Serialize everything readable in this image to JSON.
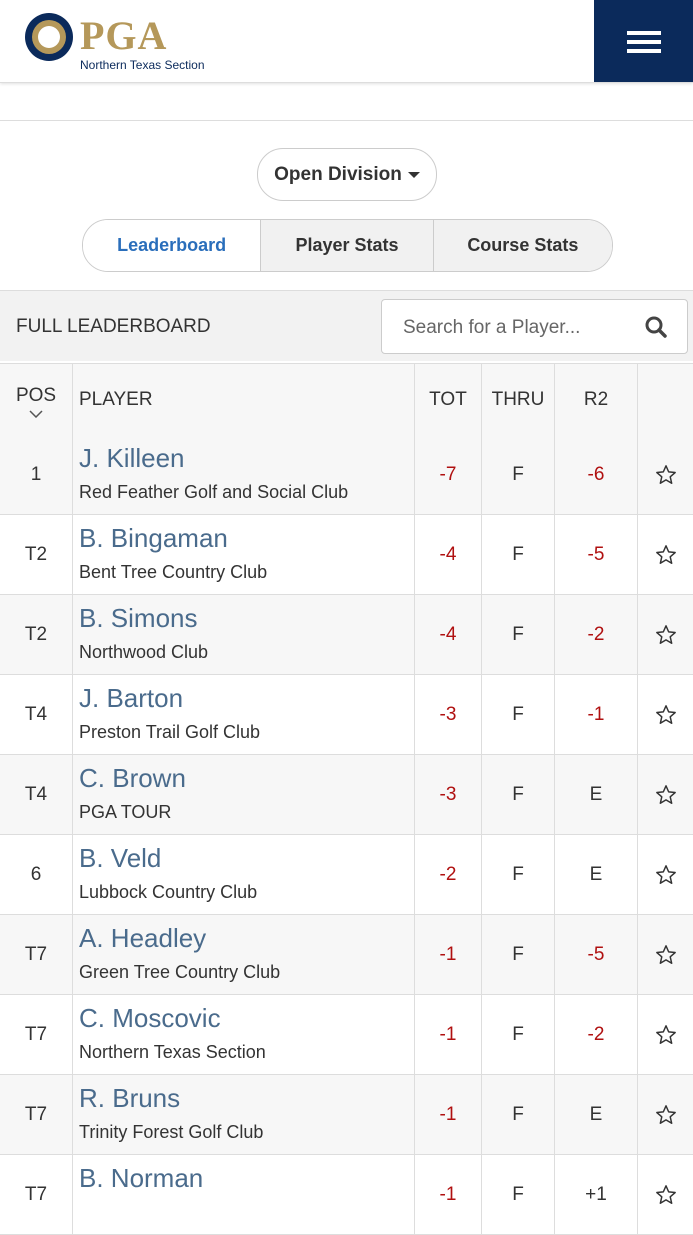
{
  "header": {
    "logo_text": "PGA",
    "section": "Northern Texas Section"
  },
  "division": "Open Division",
  "tabs": [
    "Leaderboard",
    "Player Stats",
    "Course Stats"
  ],
  "leaderboard": {
    "title": "FULL LEADERBOARD",
    "search_placeholder": "Search for a Player...",
    "columns": [
      "POS",
      "PLAYER",
      "TOT",
      "THRU",
      "R2"
    ],
    "rows": [
      {
        "pos": "1",
        "name": "J. Killeen",
        "club": "Red Feather Golf and Social Club",
        "tot": "-7",
        "thru": "F",
        "r2": "-6"
      },
      {
        "pos": "T2",
        "name": "B. Bingaman",
        "club": "Bent Tree Country Club",
        "tot": "-4",
        "thru": "F",
        "r2": "-5"
      },
      {
        "pos": "T2",
        "name": "B. Simons",
        "club": "Northwood Club",
        "tot": "-4",
        "thru": "F",
        "r2": "-2"
      },
      {
        "pos": "T4",
        "name": "J. Barton",
        "club": "Preston Trail Golf Club",
        "tot": "-3",
        "thru": "F",
        "r2": "-1"
      },
      {
        "pos": "T4",
        "name": "C. Brown",
        "club": "PGA TOUR",
        "tot": "-3",
        "thru": "F",
        "r2": "E"
      },
      {
        "pos": "6",
        "name": "B. Veld",
        "club": "Lubbock Country Club",
        "tot": "-2",
        "thru": "F",
        "r2": "E"
      },
      {
        "pos": "T7",
        "name": "A. Headley",
        "club": "Green Tree Country Club",
        "tot": "-1",
        "thru": "F",
        "r2": "-5"
      },
      {
        "pos": "T7",
        "name": "C. Moscovic",
        "club": "Northern Texas Section",
        "tot": "-1",
        "thru": "F",
        "r2": "-2"
      },
      {
        "pos": "T7",
        "name": "R. Bruns",
        "club": "Trinity Forest Golf Club",
        "tot": "-1",
        "thru": "F",
        "r2": "E"
      },
      {
        "pos": "T7",
        "name": "B. Norman",
        "tot": "-1",
        "thru": "F",
        "r2": "+1"
      }
    ]
  }
}
